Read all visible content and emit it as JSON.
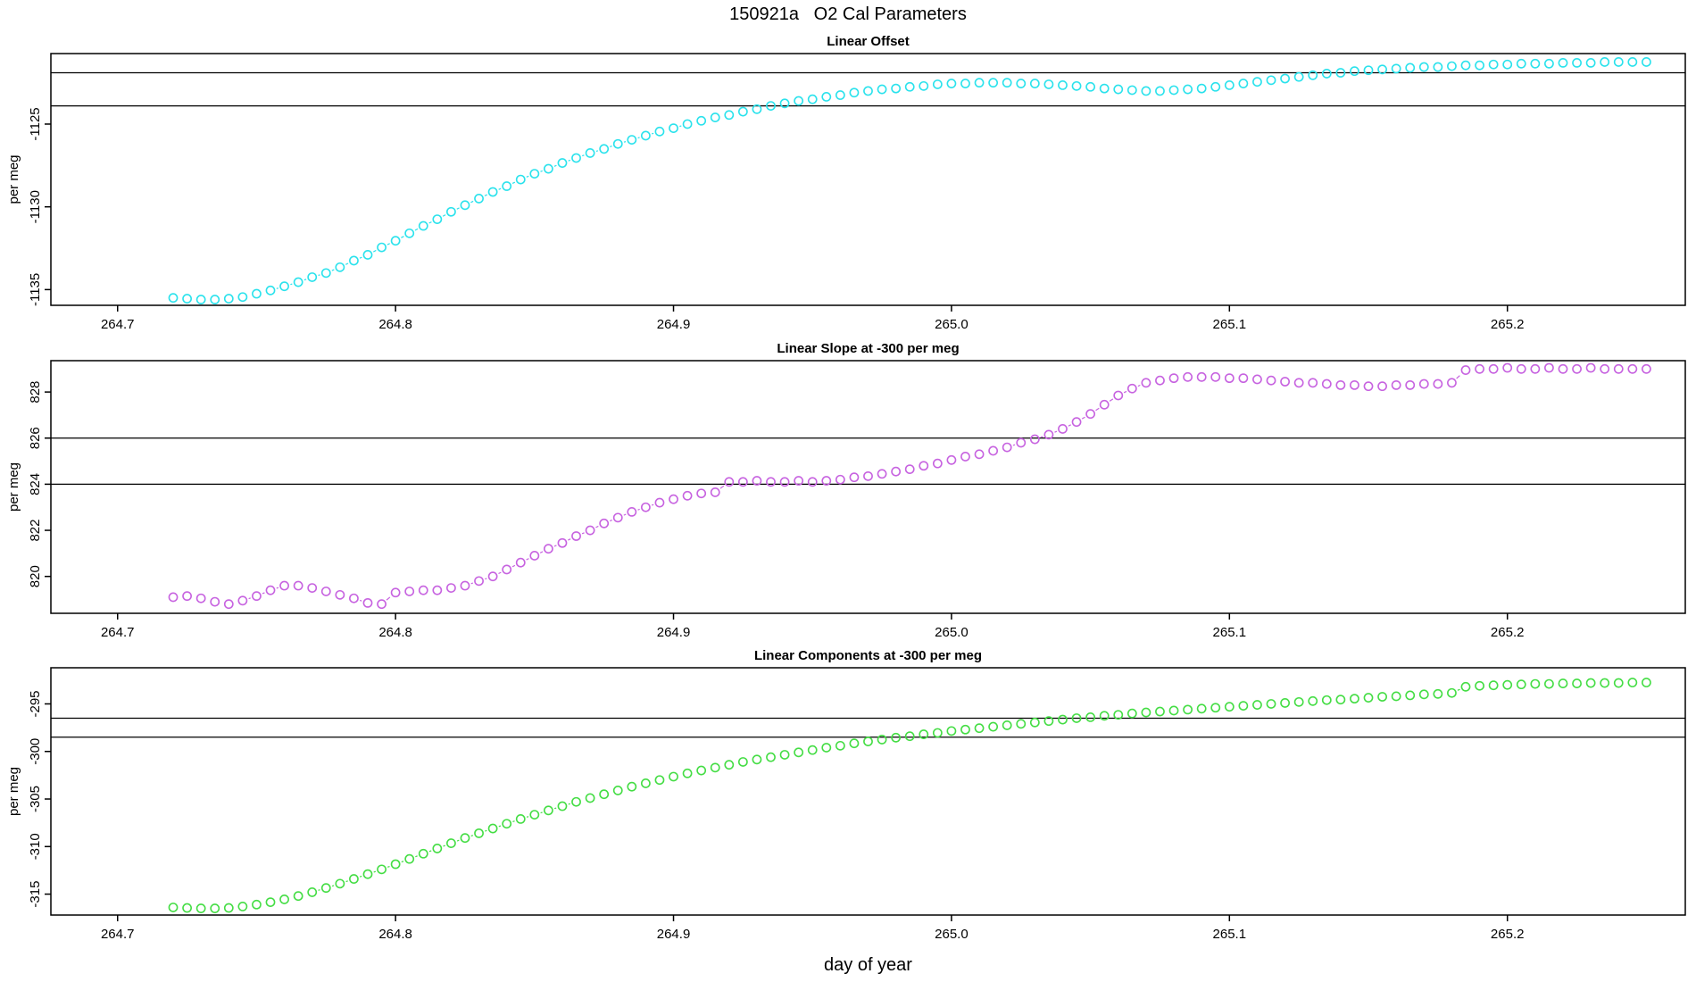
{
  "title": "150921a   O2 Cal Parameters",
  "xlabel": "day of year",
  "chart_data": {
    "type": "scatter",
    "note": "three stacked panels, open-circle markers joined by short dashed segments, two horizontal reference lines per panel",
    "x_axis_label": "day of year",
    "xlim": [
      264.676,
      265.264
    ],
    "xticks": [
      264.7,
      264.8,
      264.9,
      265.0,
      265.1,
      265.2
    ],
    "xtick_labels": [
      "264.7",
      "264.8",
      "264.9",
      "265.0",
      "265.1",
      "265.2"
    ],
    "x": [
      264.72,
      264.725,
      264.73,
      264.735,
      264.74,
      264.745,
      264.75,
      264.755,
      264.76,
      264.765,
      264.77,
      264.775,
      264.78,
      264.785,
      264.79,
      264.795,
      264.8,
      264.805,
      264.81,
      264.815,
      264.82,
      264.825,
      264.83,
      264.835,
      264.84,
      264.845,
      264.85,
      264.855,
      264.86,
      264.865,
      264.87,
      264.875,
      264.88,
      264.885,
      264.89,
      264.895,
      264.9,
      264.905,
      264.91,
      264.915,
      264.92,
      264.925,
      264.93,
      264.935,
      264.94,
      264.945,
      264.95,
      264.955,
      264.96,
      264.965,
      264.97,
      264.975,
      264.98,
      264.985,
      264.99,
      264.995,
      265.0,
      265.005,
      265.01,
      265.015,
      265.02,
      265.025,
      265.03,
      265.035,
      265.04,
      265.045,
      265.05,
      265.055,
      265.06,
      265.065,
      265.07,
      265.075,
      265.08,
      265.085,
      265.09,
      265.095,
      265.1,
      265.105,
      265.11,
      265.115,
      265.12,
      265.125,
      265.13,
      265.135,
      265.14,
      265.145,
      265.15,
      265.155,
      265.16,
      265.165,
      265.17,
      265.175,
      265.18,
      265.185,
      265.19,
      265.195,
      265.2,
      265.205,
      265.21,
      265.215,
      265.22,
      265.225,
      265.23,
      265.235,
      265.24,
      265.245,
      265.25
    ],
    "panels": [
      {
        "title": "Linear Offset",
        "ylabel": "per meg",
        "color": "#2ae2ec",
        "ylim": [
          -1135.95,
          -1120.74
        ],
        "yticks": [
          -1135,
          -1130,
          -1125
        ],
        "ytick_labels": [
          "-1135",
          "-1130",
          "-1125"
        ],
        "hlines": [
          -1121.9,
          -1123.9
        ],
        "y": [
          -1135.5,
          -1135.55,
          -1135.6,
          -1135.6,
          -1135.55,
          -1135.45,
          -1135.25,
          -1135.05,
          -1134.8,
          -1134.55,
          -1134.25,
          -1134.0,
          -1133.65,
          -1133.25,
          -1132.9,
          -1132.45,
          -1132.05,
          -1131.6,
          -1131.15,
          -1130.75,
          -1130.3,
          -1129.9,
          -1129.5,
          -1129.1,
          -1128.75,
          -1128.35,
          -1128.0,
          -1127.7,
          -1127.35,
          -1127.05,
          -1126.75,
          -1126.5,
          -1126.2,
          -1125.95,
          -1125.7,
          -1125.45,
          -1125.25,
          -1125.0,
          -1124.8,
          -1124.6,
          -1124.45,
          -1124.25,
          -1124.1,
          -1123.9,
          -1123.75,
          -1123.6,
          -1123.5,
          -1123.35,
          -1123.25,
          -1123.1,
          -1123.0,
          -1122.9,
          -1122.85,
          -1122.75,
          -1122.7,
          -1122.6,
          -1122.55,
          -1122.55,
          -1122.5,
          -1122.5,
          -1122.5,
          -1122.55,
          -1122.55,
          -1122.6,
          -1122.65,
          -1122.7,
          -1122.75,
          -1122.85,
          -1122.9,
          -1122.95,
          -1123.0,
          -1123.0,
          -1122.95,
          -1122.9,
          -1122.85,
          -1122.75,
          -1122.65,
          -1122.55,
          -1122.45,
          -1122.35,
          -1122.25,
          -1122.15,
          -1122.05,
          -1121.95,
          -1121.9,
          -1121.8,
          -1121.75,
          -1121.7,
          -1121.65,
          -1121.6,
          -1121.55,
          -1121.55,
          -1121.5,
          -1121.45,
          -1121.45,
          -1121.4,
          -1121.4,
          -1121.35,
          -1121.35,
          -1121.35,
          -1121.3,
          -1121.3,
          -1121.3,
          -1121.25,
          -1121.25,
          -1121.25,
          -1121.25
        ]
      },
      {
        "title": "Linear Slope at -300 per meg",
        "ylabel": "per meg",
        "color": "#c763e0",
        "ylim": [
          818.4,
          829.36
        ],
        "yticks": [
          820,
          822,
          824,
          826,
          828
        ],
        "ytick_labels": [
          "820",
          "822",
          "824",
          "826",
          "828"
        ],
        "hlines": [
          824,
          826
        ],
        "y": [
          819.1,
          819.15,
          819.05,
          818.9,
          818.8,
          818.95,
          819.15,
          819.4,
          819.6,
          819.6,
          819.5,
          819.35,
          819.2,
          819.05,
          818.85,
          818.8,
          819.3,
          819.35,
          819.4,
          819.4,
          819.5,
          819.6,
          819.8,
          820.0,
          820.3,
          820.6,
          820.9,
          821.2,
          821.45,
          821.75,
          822.0,
          822.3,
          822.55,
          822.8,
          823.0,
          823.2,
          823.35,
          823.5,
          823.6,
          823.65,
          824.1,
          824.1,
          824.15,
          824.1,
          824.1,
          824.15,
          824.1,
          824.15,
          824.2,
          824.3,
          824.35,
          824.45,
          824.55,
          824.65,
          824.8,
          824.9,
          825.05,
          825.2,
          825.3,
          825.45,
          825.6,
          825.8,
          825.95,
          826.15,
          826.4,
          826.7,
          827.05,
          827.45,
          827.85,
          828.15,
          828.4,
          828.5,
          828.6,
          828.65,
          828.65,
          828.65,
          828.6,
          828.6,
          828.55,
          828.5,
          828.45,
          828.4,
          828.4,
          828.35,
          828.3,
          828.3,
          828.25,
          828.25,
          828.3,
          828.3,
          828.35,
          828.35,
          828.4,
          828.95,
          829.0,
          829.0,
          829.05,
          829.0,
          829.0,
          829.05,
          829.0,
          829.0,
          829.05,
          829.0,
          829.0,
          829.0,
          829.0
        ]
      },
      {
        "title": "Linear Components at -300 per meg",
        "ylabel": "per meg",
        "color": "#44dd44",
        "ylim": [
          -317.2,
          -291.2
        ],
        "yticks": [
          -315,
          -310,
          -305,
          -300,
          -295
        ],
        "ytick_labels": [
          "-315",
          "-310",
          "-305",
          "-300",
          "-295"
        ],
        "hlines": [
          -296.5,
          -298.5
        ],
        "y": [
          -316.4,
          -316.45,
          -316.5,
          -316.5,
          -316.45,
          -316.3,
          -316.1,
          -315.85,
          -315.55,
          -315.2,
          -314.8,
          -314.35,
          -313.9,
          -313.4,
          -312.9,
          -312.4,
          -311.85,
          -311.3,
          -310.75,
          -310.2,
          -309.65,
          -309.1,
          -308.6,
          -308.1,
          -307.6,
          -307.1,
          -306.65,
          -306.2,
          -305.75,
          -305.3,
          -304.9,
          -304.5,
          -304.1,
          -303.7,
          -303.35,
          -303.0,
          -302.65,
          -302.3,
          -302.0,
          -301.7,
          -301.4,
          -301.1,
          -300.85,
          -300.6,
          -300.35,
          -300.1,
          -299.85,
          -299.6,
          -299.4,
          -299.15,
          -298.95,
          -298.75,
          -298.55,
          -298.4,
          -298.2,
          -298.05,
          -297.85,
          -297.7,
          -297.55,
          -297.4,
          -297.25,
          -297.1,
          -296.95,
          -296.8,
          -296.65,
          -296.5,
          -296.4,
          -296.25,
          -296.15,
          -296.0,
          -295.9,
          -295.8,
          -295.7,
          -295.6,
          -295.5,
          -295.4,
          -295.3,
          -295.2,
          -295.1,
          -295.0,
          -294.9,
          -294.8,
          -294.7,
          -294.6,
          -294.55,
          -294.45,
          -294.35,
          -294.25,
          -294.2,
          -294.1,
          -294.0,
          -293.95,
          -293.85,
          -293.2,
          -293.1,
          -293.05,
          -293.0,
          -292.95,
          -292.9,
          -292.9,
          -292.85,
          -292.85,
          -292.8,
          -292.8,
          -292.8,
          -292.75,
          -292.75
        ]
      }
    ]
  }
}
